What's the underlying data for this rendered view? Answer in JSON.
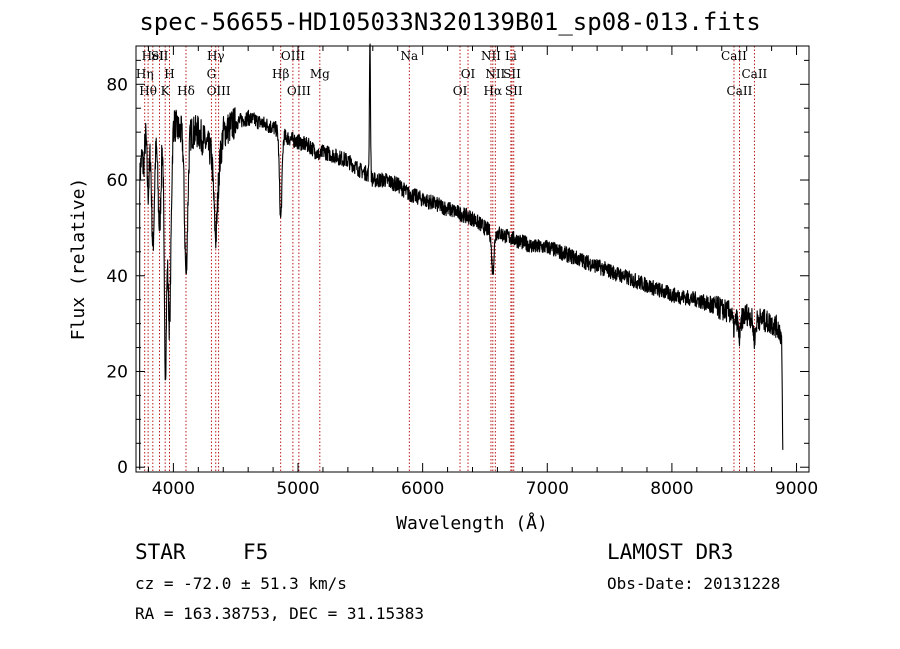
{
  "chart_data": {
    "type": "line",
    "title": "spec-56655-HD105033N320139B01_sp08-013.fits",
    "xlabel": "Wavelength (Å)",
    "ylabel": "Flux (relative)",
    "xlim": [
      3700,
      9100
    ],
    "ylim": [
      -1,
      88
    ],
    "xticks": [
      4000,
      5000,
      6000,
      7000,
      8000,
      9000
    ],
    "xtick_labels": [
      "4000",
      "5000",
      "6000",
      "7000",
      "8000",
      "9000"
    ],
    "yticks": [
      0,
      20,
      40,
      60,
      80
    ],
    "ytick_labels": [
      "0",
      "20",
      "40",
      "60",
      "80"
    ],
    "grid": false,
    "spectrum_anchors": {
      "x": [
        3730,
        3750,
        3780,
        3800,
        3830,
        3860,
        3890,
        3920,
        3940,
        3970,
        4000,
        4050,
        4080,
        4101,
        4130,
        4200,
        4300,
        4340,
        4383,
        4400,
        4500,
        4600,
        4700,
        4800,
        4861,
        4900,
        5000,
        5100,
        5175,
        5200,
        5300,
        5400,
        5500,
        5577,
        5600,
        5700,
        5800,
        5893,
        5900,
        6000,
        6100,
        6200,
        6300,
        6400,
        6500,
        6563,
        6600,
        6700,
        6800,
        6900,
        7000,
        7100,
        7200,
        7400,
        7600,
        7800,
        8000,
        8200,
        8400,
        8500,
        8542,
        8600,
        8662,
        8700,
        8800,
        8860,
        8880,
        8890
      ],
      "y": [
        60,
        72,
        75,
        78,
        75,
        70,
        68,
        74,
        60,
        65,
        72,
        70,
        71,
        62,
        70,
        70,
        66,
        60,
        66,
        70,
        72,
        73,
        72,
        71,
        70,
        69,
        68,
        67,
        65,
        66,
        65,
        64,
        62,
        61,
        60,
        60,
        59,
        57,
        57,
        56,
        55,
        54,
        53,
        52,
        50,
        49,
        49,
        48,
        47,
        46,
        46,
        45,
        44,
        42,
        40,
        38,
        36,
        35,
        33,
        32,
        31,
        32,
        31,
        31,
        30,
        29,
        27,
        3
      ]
    },
    "absorption_dips": [
      {
        "center": 3760,
        "width": 12,
        "depth": 10
      },
      {
        "center": 3798,
        "width": 10,
        "depth": 20
      },
      {
        "center": 3835,
        "width": 12,
        "depth": 28
      },
      {
        "center": 3889,
        "width": 12,
        "depth": 18
      },
      {
        "center": 3934,
        "width": 10,
        "depth": 42
      },
      {
        "center": 3969,
        "width": 12,
        "depth": 35
      },
      {
        "center": 4101,
        "width": 14,
        "depth": 22
      },
      {
        "center": 4340,
        "width": 14,
        "depth": 12
      },
      {
        "center": 4861,
        "width": 10,
        "depth": 18
      },
      {
        "center": 6563,
        "width": 10,
        "depth": 8
      },
      {
        "center": 8498,
        "width": 10,
        "depth": 3
      },
      {
        "center": 8542,
        "width": 10,
        "depth": 4
      },
      {
        "center": 8662,
        "width": 10,
        "depth": 4
      }
    ],
    "emission_spikes": [
      {
        "center": 5577,
        "width": 4,
        "height": 29
      }
    ],
    "noise_amplitude": 1.6,
    "line_markers": [
      {
        "x": 3770,
        "label": "Hη",
        "row": 2
      },
      {
        "x": 3797,
        "label": "Hθ",
        "row": 3
      },
      {
        "x": 3835,
        "label": "HeI",
        "row": 1
      },
      {
        "x": 3889,
        "label": "SII",
        "row": 1
      },
      {
        "x": 3934,
        "label": "K",
        "row": 3
      },
      {
        "x": 3969,
        "label": "H",
        "row": 2
      },
      {
        "x": 4101,
        "label": "Hδ",
        "row": 3
      },
      {
        "x": 4305,
        "label": "G",
        "row": 2
      },
      {
        "x": 4340,
        "label": "Hγ",
        "row": 1
      },
      {
        "x": 4363,
        "label": "OIII",
        "row": 3
      },
      {
        "x": 4861,
        "label": "Hβ",
        "row": 2
      },
      {
        "x": 4959,
        "label": "OIII",
        "row": 1
      },
      {
        "x": 5007,
        "label": "OIII",
        "row": 3
      },
      {
        "x": 5175,
        "label": "Mg",
        "row": 2
      },
      {
        "x": 5893,
        "label": "Na",
        "row": 1
      },
      {
        "x": 6300,
        "label": "OI",
        "row": 3
      },
      {
        "x": 6364,
        "label": "OI",
        "row": 2
      },
      {
        "x": 6548,
        "label": "NII",
        "row": 1
      },
      {
        "x": 6563,
        "label": "Hα",
        "row": 3
      },
      {
        "x": 6583,
        "label": "NII",
        "row": 2
      },
      {
        "x": 6708,
        "label": "Li",
        "row": 1
      },
      {
        "x": 6717,
        "label": "SII",
        "row": 2
      },
      {
        "x": 6731,
        "label": "SII",
        "row": 3
      },
      {
        "x": 8498,
        "label": "CaII",
        "row": 1
      },
      {
        "x": 8542,
        "label": "CaII",
        "row": 3
      },
      {
        "x": 8662,
        "label": "CaII",
        "row": 2
      }
    ],
    "colors": {
      "spectrum": "#000000",
      "marker": "#b40000",
      "axes": "#000000"
    }
  },
  "info": {
    "object_type": "STAR",
    "subclass": "F5",
    "survey": "LAMOST DR3",
    "redshift": "cz = -72.0 ± 51.3 km/s",
    "obs_date": "Obs-Date: 20131228",
    "coords": "RA = 163.38753, DEC =  31.15383"
  }
}
